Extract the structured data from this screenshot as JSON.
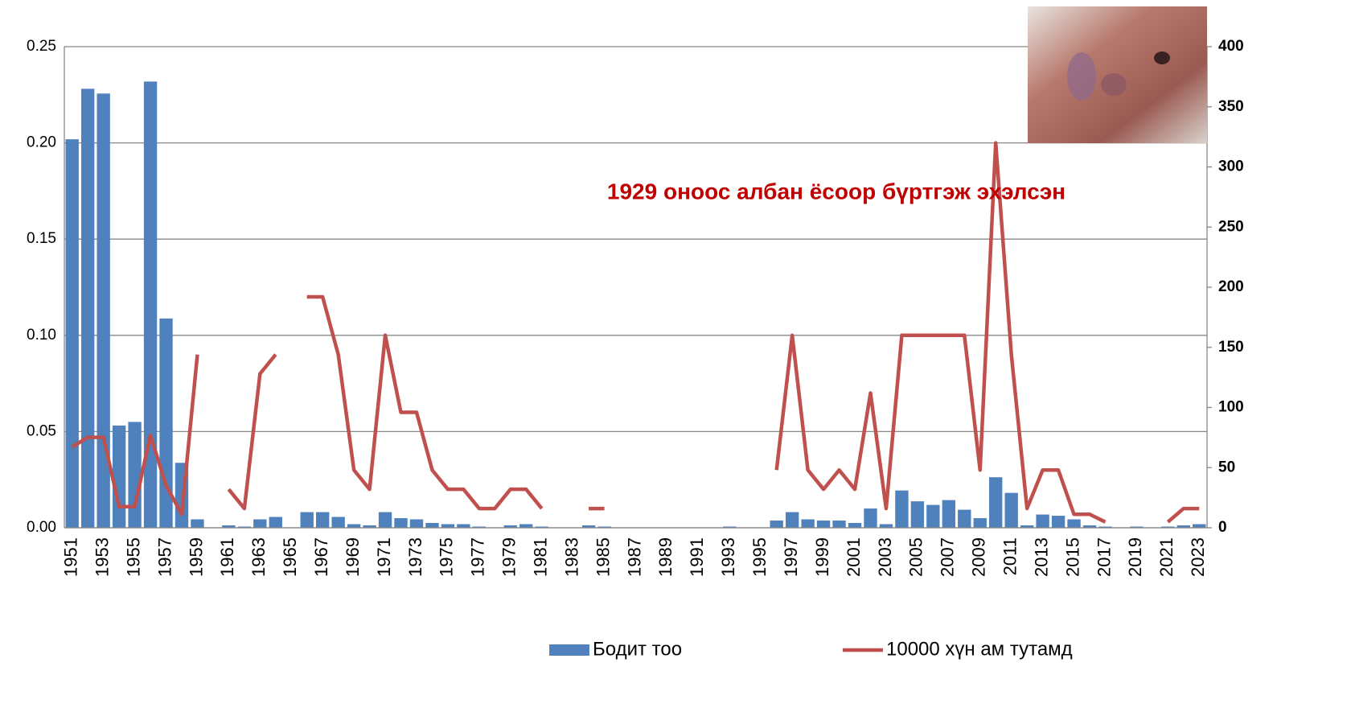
{
  "chart_data": {
    "type": "bar-line",
    "annotation": "1929 оноос албан ёсоор бүртгэж эхэлсэн",
    "categories": [
      "1951",
      null,
      "1953",
      null,
      "1955",
      null,
      "1957",
      null,
      "1959",
      null,
      "1961",
      null,
      "1963",
      null,
      "1965",
      null,
      "1967",
      null,
      "1969",
      null,
      "1971",
      null,
      "1973",
      null,
      "1975",
      null,
      "1977",
      null,
      "1979",
      null,
      "1981",
      null,
      "1983",
      null,
      "1985",
      null,
      "1987",
      null,
      "1989",
      null,
      "1991",
      null,
      "1993",
      null,
      "1995",
      null,
      "1997",
      null,
      "1999",
      null,
      "2001",
      null,
      "2003",
      null,
      "2005",
      null,
      "2007",
      null,
      "2009",
      null,
      "2011",
      null,
      "2013",
      null,
      "2015",
      null,
      "2017",
      null,
      "2019",
      null,
      "2021",
      null,
      "2023"
    ],
    "series": [
      {
        "name": "Бодит тоо",
        "color": "#4f81bd",
        "type": "bar",
        "axis": "y2",
        "values": [
          323,
          365,
          361,
          85,
          88,
          371,
          174,
          54,
          7,
          0,
          2,
          1,
          7,
          9,
          0,
          13,
          13,
          9,
          3,
          2,
          13,
          8,
          7,
          4,
          3,
          3,
          1,
          0,
          2,
          3,
          1,
          0,
          0,
          2,
          1,
          0,
          0,
          0,
          0,
          0,
          0,
          0,
          1,
          0,
          0,
          6,
          13,
          7,
          6,
          6,
          4,
          16,
          3,
          31,
          22,
          19,
          23,
          15,
          8,
          42,
          29,
          2,
          11,
          10,
          7,
          2,
          1,
          0,
          1,
          0,
          1,
          2,
          3
        ]
      },
      {
        "name": "10000 хүн ам тутамд",
        "color": "#c0504d",
        "type": "line",
        "values": [
          0.042,
          0.047,
          0.047,
          0.011,
          0.011,
          0.048,
          0.022,
          0.007,
          0.09,
          null,
          0.02,
          0.01,
          0.08,
          0.09,
          null,
          0.12,
          0.12,
          0.09,
          0.03,
          0.02,
          0.1,
          0.06,
          0.06,
          0.03,
          0.02,
          0.02,
          0.01,
          0.01,
          0.02,
          0.02,
          0.01,
          null,
          null,
          0.01,
          0.01,
          null,
          null,
          null,
          null,
          null,
          null,
          null,
          null,
          null,
          null,
          0.03,
          0.1,
          0.03,
          0.02,
          0.03,
          0.02,
          0.07,
          0.01,
          0.1,
          0.1,
          0.1,
          0.1,
          0.1,
          0.03,
          0.2,
          0.09,
          0.01,
          0.03,
          0.03,
          0.007,
          0.007,
          0.003,
          null,
          null,
          null,
          0.003,
          0.01,
          0.01
        ]
      }
    ],
    "ylim": [
      0,
      0.25
    ],
    "yticks": [
      {
        "value": 0,
        "label": "0.00"
      },
      {
        "value": 0.05,
        "label": "0.05"
      },
      {
        "value": 0.1,
        "label": "0.10"
      },
      {
        "value": 0.15,
        "label": "0.15"
      },
      {
        "value": 0.2,
        "label": "0.20"
      },
      {
        "value": 0.25,
        "label": "0.25"
      }
    ],
    "y2lim": [
      0,
      400
    ],
    "y2ticks": [
      0,
      50,
      100,
      150,
      200,
      250,
      300,
      350,
      400
    ],
    "grid": true,
    "legend": "bottom"
  }
}
